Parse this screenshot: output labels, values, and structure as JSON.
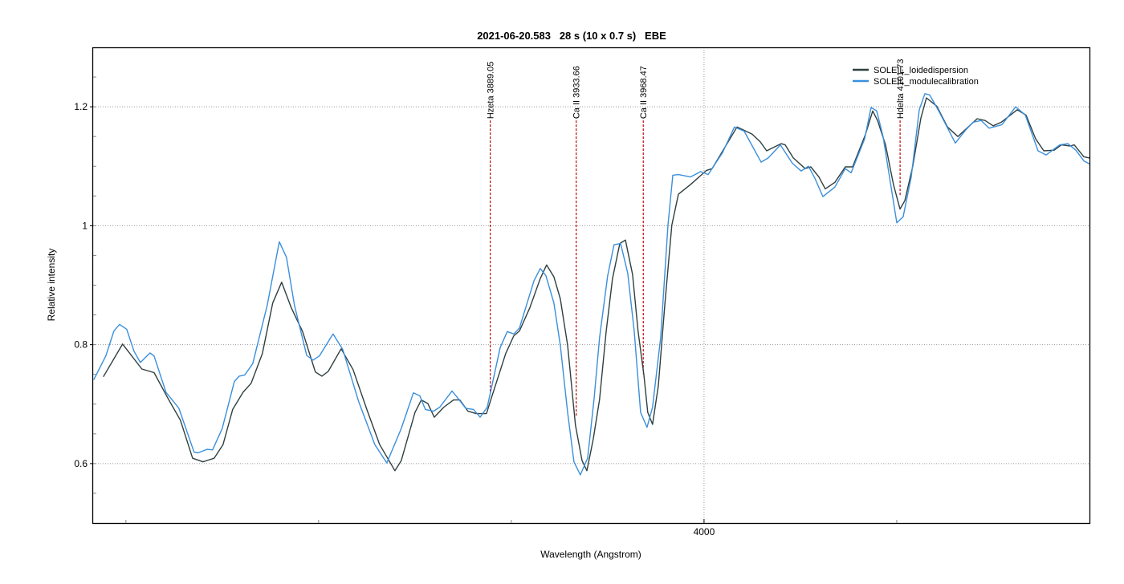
{
  "chart_data": {
    "type": "line",
    "title": "2021-06-20.583   28 s (10 x 0.7 s)   EBE",
    "xlabel": "Wavelength (Angstrom)",
    "ylabel": "Relative intensity",
    "xlim": [
      3683,
      4200
    ],
    "ylim": [
      0.5,
      1.3
    ],
    "x_ticks_labeled": [
      4000
    ],
    "x_ticks_labels": [
      "4000"
    ],
    "x_minor_ticks": [
      3700,
      3800,
      3900,
      4100
    ],
    "y_ticks": [
      0.6,
      0.8,
      1,
      1.2
    ],
    "y_tick_labels": [
      "0.6",
      "0.8",
      "1",
      "1.2"
    ],
    "y_minor_step": 0.05,
    "grid": true,
    "legend_position": "top-right",
    "series": [
      {
        "name": "SOLEIL_loidedispersion",
        "color": "#2f3f3f",
        "points": [
          [
            3688.3,
            0.746
          ],
          [
            3698.3,
            0.801
          ],
          [
            3708.3,
            0.759
          ],
          [
            3714.6,
            0.753
          ],
          [
            3722.1,
            0.708
          ],
          [
            3728.3,
            0.673
          ],
          [
            3734.6,
            0.609
          ],
          [
            3740.0,
            0.603
          ],
          [
            3745.8,
            0.609
          ],
          [
            3750.4,
            0.632
          ],
          [
            3755.4,
            0.691
          ],
          [
            3760.8,
            0.72
          ],
          [
            3765.0,
            0.735
          ],
          [
            3770.8,
            0.785
          ],
          [
            3776.2,
            0.87
          ],
          [
            3780.8,
            0.905
          ],
          [
            3785.8,
            0.862
          ],
          [
            3791.7,
            0.822
          ],
          [
            3798.3,
            0.754
          ],
          [
            3801.7,
            0.747
          ],
          [
            3805.0,
            0.755
          ],
          [
            3811.7,
            0.793
          ],
          [
            3817.9,
            0.758
          ],
          [
            3825.0,
            0.691
          ],
          [
            3831.7,
            0.632
          ],
          [
            3839.6,
            0.588
          ],
          [
            3842.9,
            0.605
          ],
          [
            3850.0,
            0.686
          ],
          [
            3853.3,
            0.707
          ],
          [
            3856.7,
            0.701
          ],
          [
            3860.0,
            0.678
          ],
          [
            3865.0,
            0.695
          ],
          [
            3870.0,
            0.707
          ],
          [
            3873.3,
            0.707
          ],
          [
            3877.5,
            0.688
          ],
          [
            3881.7,
            0.684
          ],
          [
            3887.1,
            0.684
          ],
          [
            3890.0,
            0.714
          ],
          [
            3897.1,
            0.785
          ],
          [
            3901.3,
            0.815
          ],
          [
            3904.2,
            0.823
          ],
          [
            3909.6,
            0.862
          ],
          [
            3915.0,
            0.911
          ],
          [
            3918.3,
            0.934
          ],
          [
            3922.1,
            0.914
          ],
          [
            3925.4,
            0.877
          ],
          [
            3929.2,
            0.799
          ],
          [
            3933.3,
            0.664
          ],
          [
            3936.7,
            0.605
          ],
          [
            3939.2,
            0.588
          ],
          [
            3942.5,
            0.641
          ],
          [
            3945.8,
            0.708
          ],
          [
            3949.2,
            0.822
          ],
          [
            3952.5,
            0.911
          ],
          [
            3956.3,
            0.97
          ],
          [
            3959.2,
            0.976
          ],
          [
            3962.9,
            0.918
          ],
          [
            3965.8,
            0.822
          ],
          [
            3968.8,
            0.749
          ],
          [
            3970.8,
            0.686
          ],
          [
            3973.3,
            0.666
          ],
          [
            3976.3,
            0.731
          ],
          [
            3979.6,
            0.866
          ],
          [
            3983.3,
            1.001
          ],
          [
            3986.7,
            1.053
          ],
          [
            3992.9,
            1.069
          ],
          [
            4001.3,
            1.093
          ],
          [
            4004.2,
            1.096
          ],
          [
            4017.1,
            1.166
          ],
          [
            4025.0,
            1.154
          ],
          [
            4029.2,
            1.141
          ],
          [
            4032.5,
            1.126
          ],
          [
            4040.0,
            1.138
          ],
          [
            4042.1,
            1.136
          ],
          [
            4046.3,
            1.114
          ],
          [
            4052.5,
            1.096
          ],
          [
            4055.4,
            1.099
          ],
          [
            4059.6,
            1.082
          ],
          [
            4062.9,
            1.062
          ],
          [
            4067.9,
            1.073
          ],
          [
            4073.3,
            1.099
          ],
          [
            4077.1,
            1.099
          ],
          [
            4083.8,
            1.154
          ],
          [
            4087.5,
            1.193
          ],
          [
            4090.0,
            1.177
          ],
          [
            4094.2,
            1.136
          ],
          [
            4098.3,
            1.069
          ],
          [
            4101.7,
            1.028
          ],
          [
            4104.2,
            1.042
          ],
          [
            4108.3,
            1.1
          ],
          [
            4112.5,
            1.181
          ],
          [
            4115.4,
            1.215
          ],
          [
            4120.8,
            1.201
          ],
          [
            4126.3,
            1.166
          ],
          [
            4131.7,
            1.15
          ],
          [
            4141.7,
            1.18
          ],
          [
            4145.8,
            1.177
          ],
          [
            4150.0,
            1.168
          ],
          [
            4154.2,
            1.174
          ],
          [
            4162.5,
            1.195
          ],
          [
            4167.1,
            1.186
          ],
          [
            4172.1,
            1.146
          ],
          [
            4176.3,
            1.126
          ],
          [
            4181.7,
            1.127
          ],
          [
            4185.4,
            1.136
          ],
          [
            4190.0,
            1.134
          ],
          [
            4192.1,
            1.136
          ],
          [
            4197.1,
            1.116
          ],
          [
            4200.0,
            1.114
          ]
        ]
      },
      {
        "name": "SOLEIL_modulecalibration",
        "color": "#3a8fdc",
        "points": [
          [
            3683.3,
            0.741
          ],
          [
            3689.6,
            0.781
          ],
          [
            3693.8,
            0.823
          ],
          [
            3696.7,
            0.834
          ],
          [
            3700.4,
            0.826
          ],
          [
            3704.2,
            0.789
          ],
          [
            3707.5,
            0.77
          ],
          [
            3712.5,
            0.786
          ],
          [
            3714.6,
            0.781
          ],
          [
            3720.8,
            0.72
          ],
          [
            3727.5,
            0.693
          ],
          [
            3735.4,
            0.619
          ],
          [
            3737.5,
            0.618
          ],
          [
            3742.1,
            0.624
          ],
          [
            3745.0,
            0.623
          ],
          [
            3750.0,
            0.659
          ],
          [
            3756.3,
            0.738
          ],
          [
            3758.8,
            0.747
          ],
          [
            3761.7,
            0.749
          ],
          [
            3765.8,
            0.768
          ],
          [
            3773.3,
            0.866
          ],
          [
            3779.6,
            0.973
          ],
          [
            3783.3,
            0.947
          ],
          [
            3787.5,
            0.866
          ],
          [
            3793.8,
            0.782
          ],
          [
            3797.1,
            0.774
          ],
          [
            3800.4,
            0.781
          ],
          [
            3807.5,
            0.818
          ],
          [
            3812.5,
            0.792
          ],
          [
            3820.8,
            0.704
          ],
          [
            3829.2,
            0.632
          ],
          [
            3835.4,
            0.601
          ],
          [
            3842.9,
            0.659
          ],
          [
            3849.2,
            0.719
          ],
          [
            3852.5,
            0.714
          ],
          [
            3855.4,
            0.691
          ],
          [
            3859.6,
            0.688
          ],
          [
            3862.9,
            0.695
          ],
          [
            3869.2,
            0.722
          ],
          [
            3871.3,
            0.714
          ],
          [
            3876.3,
            0.693
          ],
          [
            3880.4,
            0.691
          ],
          [
            3883.8,
            0.678
          ],
          [
            3887.5,
            0.695
          ],
          [
            3894.2,
            0.795
          ],
          [
            3897.9,
            0.822
          ],
          [
            3901.3,
            0.818
          ],
          [
            3904.2,
            0.828
          ],
          [
            3911.7,
            0.907
          ],
          [
            3915.0,
            0.928
          ],
          [
            3917.9,
            0.916
          ],
          [
            3922.1,
            0.87
          ],
          [
            3925.4,
            0.799
          ],
          [
            3929.2,
            0.686
          ],
          [
            3932.5,
            0.603
          ],
          [
            3935.8,
            0.581
          ],
          [
            3939.6,
            0.609
          ],
          [
            3942.9,
            0.708
          ],
          [
            3945.8,
            0.812
          ],
          [
            3950.0,
            0.916
          ],
          [
            3953.3,
            0.968
          ],
          [
            3956.7,
            0.97
          ],
          [
            3960.4,
            0.92
          ],
          [
            3963.8,
            0.822
          ],
          [
            3967.1,
            0.686
          ],
          [
            3970.4,
            0.661
          ],
          [
            3973.3,
            0.695
          ],
          [
            3977.5,
            0.812
          ],
          [
            3981.3,
            1.001
          ],
          [
            3983.8,
            1.085
          ],
          [
            3986.7,
            1.086
          ],
          [
            3992.9,
            1.082
          ],
          [
            3998.3,
            1.091
          ],
          [
            4002.1,
            1.086
          ],
          [
            4009.6,
            1.123
          ],
          [
            4015.8,
            1.166
          ],
          [
            4020.8,
            1.159
          ],
          [
            4029.6,
            1.107
          ],
          [
            4033.3,
            1.114
          ],
          [
            4039.6,
            1.136
          ],
          [
            4045.8,
            1.105
          ],
          [
            4050.4,
            1.092
          ],
          [
            4054.2,
            1.1
          ],
          [
            4057.5,
            1.08
          ],
          [
            4061.7,
            1.049
          ],
          [
            4067.9,
            1.065
          ],
          [
            4073.3,
            1.096
          ],
          [
            4076.3,
            1.089
          ],
          [
            4083.3,
            1.146
          ],
          [
            4086.7,
            1.199
          ],
          [
            4089.6,
            1.193
          ],
          [
            4092.9,
            1.15
          ],
          [
            4100.0,
            1.005
          ],
          [
            4103.3,
            1.015
          ],
          [
            4107.5,
            1.082
          ],
          [
            4111.7,
            1.195
          ],
          [
            4114.6,
            1.222
          ],
          [
            4117.1,
            1.22
          ],
          [
            4122.1,
            1.191
          ],
          [
            4130.4,
            1.139
          ],
          [
            4135.8,
            1.161
          ],
          [
            4139.6,
            1.174
          ],
          [
            4143.8,
            1.177
          ],
          [
            4147.9,
            1.164
          ],
          [
            4154.6,
            1.17
          ],
          [
            4161.7,
            1.2
          ],
          [
            4166.7,
            1.186
          ],
          [
            4173.3,
            1.126
          ],
          [
            4177.5,
            1.119
          ],
          [
            4184.6,
            1.136
          ],
          [
            4188.8,
            1.138
          ],
          [
            4192.9,
            1.127
          ],
          [
            4197.1,
            1.109
          ],
          [
            4200.0,
            1.104
          ]
        ]
      }
    ],
    "annotations": [
      {
        "label": "Hzeta 3889.05",
        "x": 3889.05,
        "y_top": 1.177,
        "y_end": 0.717
      },
      {
        "label": "Ca II 3933.66",
        "x": 3933.66,
        "y_top": 1.177,
        "y_end": 0.678
      },
      {
        "label": "Ca II 3968.47",
        "x": 3968.47,
        "y_top": 1.177,
        "y_end": 0.751
      },
      {
        "label": "Hdelta 4101.73",
        "x": 4101.73,
        "y_top": 1.177,
        "y_end": 1.049
      }
    ],
    "annotation_color": "#c00000"
  }
}
